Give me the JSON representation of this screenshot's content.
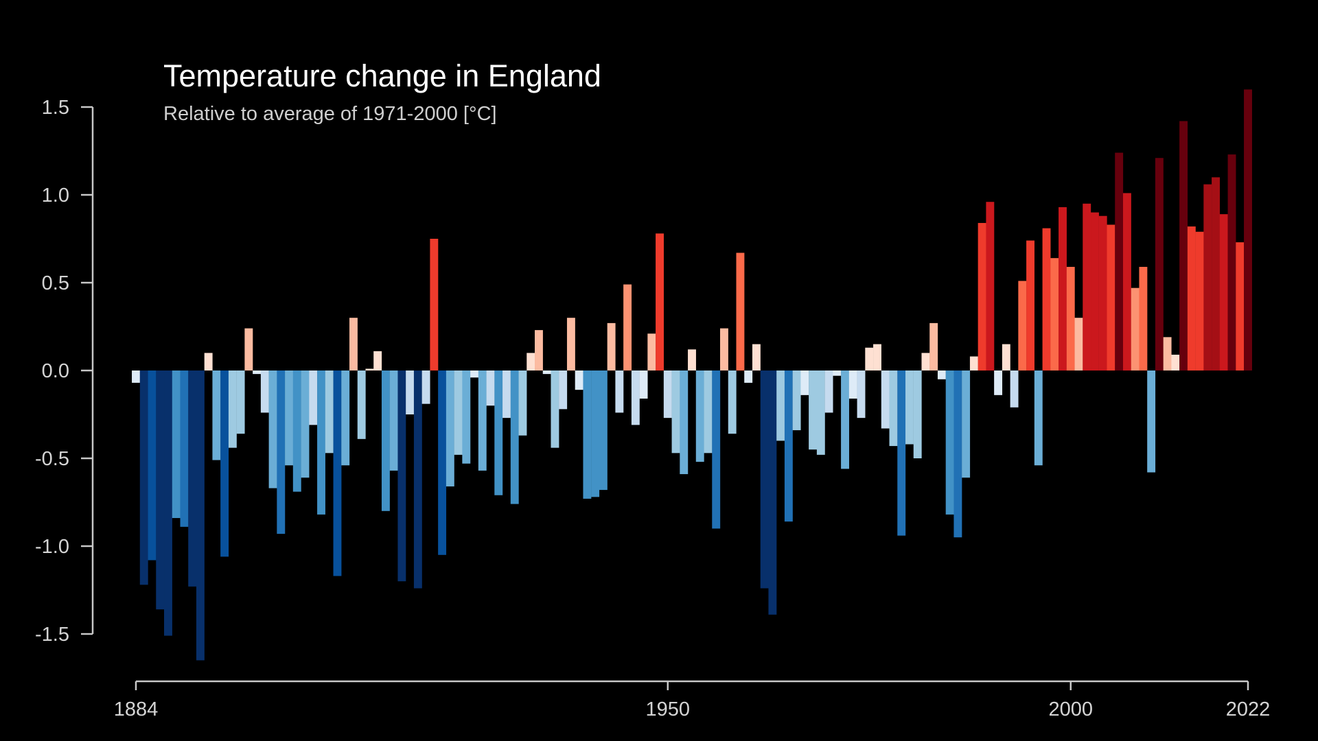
{
  "chart_data": {
    "type": "bar",
    "title": "Temperature change in England",
    "subtitle": "Relative to average of 1971-2000  [°C]",
    "xlabel": "",
    "ylabel": "",
    "ylim": [
      -1.5,
      1.5
    ],
    "xlim": [
      1884,
      2022
    ],
    "grid": false,
    "legend": "none",
    "y_ticks": [
      {
        "value": 1.5,
        "label": "1.5"
      },
      {
        "value": 1.0,
        "label": "1.0"
      },
      {
        "value": 0.5,
        "label": "0.5"
      },
      {
        "value": 0.0,
        "label": "0.0"
      },
      {
        "value": -0.5,
        "label": "-0.5"
      },
      {
        "value": -1.0,
        "label": "-1.0"
      },
      {
        "value": -1.5,
        "label": "-1.5"
      }
    ],
    "x_ticks": [
      {
        "value": 1884,
        "label": "1884"
      },
      {
        "value": 1950,
        "label": "1950"
      },
      {
        "value": 2000,
        "label": "2000"
      },
      {
        "value": 2022,
        "label": "2022"
      }
    ],
    "start_year": 1884,
    "values": [
      -0.07,
      -1.22,
      -1.08,
      -1.36,
      -1.51,
      -0.84,
      -0.89,
      -1.23,
      -1.65,
      0.1,
      -0.51,
      -1.06,
      -0.44,
      -0.36,
      0.24,
      -0.02,
      -0.24,
      -0.67,
      -0.93,
      -0.54,
      -0.69,
      -0.61,
      -0.31,
      -0.82,
      -0.47,
      -1.17,
      -0.54,
      0.3,
      -0.39,
      0.01,
      0.11,
      -0.8,
      -0.57,
      -1.2,
      -0.25,
      -1.24,
      -0.19,
      0.75,
      -1.05,
      -0.66,
      -0.48,
      -0.53,
      -0.04,
      -0.57,
      -0.2,
      -0.71,
      -0.27,
      -0.76,
      -0.37,
      0.1,
      0.23,
      -0.02,
      -0.44,
      -0.22,
      0.3,
      -0.11,
      -0.73,
      -0.72,
      -0.68,
      0.27,
      -0.24,
      0.49,
      -0.31,
      -0.16,
      0.21,
      0.78,
      -0.27,
      -0.47,
      -0.59,
      0.12,
      -0.52,
      -0.47,
      -0.9,
      0.24,
      -0.36,
      0.67,
      -0.07,
      0.15,
      -1.24,
      -1.39,
      -0.4,
      -0.86,
      -0.34,
      -0.14,
      -0.45,
      -0.48,
      -0.24,
      -0.03,
      -0.56,
      -0.16,
      -0.27,
      0.13,
      0.15,
      -0.33,
      -0.43,
      -0.94,
      -0.42,
      -0.5,
      0.1,
      0.27,
      -0.05,
      -0.82,
      -0.95,
      -0.61,
      0.08,
      0.84,
      0.96,
      -0.14,
      0.15,
      -0.21,
      0.51,
      0.74,
      -0.54,
      0.81,
      0.64,
      0.93,
      0.59,
      0.3,
      0.95,
      0.9,
      0.88,
      0.83,
      1.24,
      1.01,
      0.47,
      0.59,
      -0.58,
      1.21,
      0.19,
      0.09,
      1.42,
      0.82,
      0.79,
      1.06,
      1.1,
      0.89,
      1.23,
      0.73,
      1.6
    ],
    "color_scale": {
      "step": 0.17,
      "warm": [
        "#fee0d2",
        "#fcbba1",
        "#fc9272",
        "#fb6a4a",
        "#ef3b2c",
        "#cb181d",
        "#a50f15",
        "#67000d"
      ],
      "cool": [
        "#deebf7",
        "#c6dbef",
        "#9ecae1",
        "#6baed6",
        "#4292c6",
        "#2171b5",
        "#08519c",
        "#08306b"
      ]
    },
    "background_color": "#000000",
    "axis_color": "#c8c8c8"
  }
}
